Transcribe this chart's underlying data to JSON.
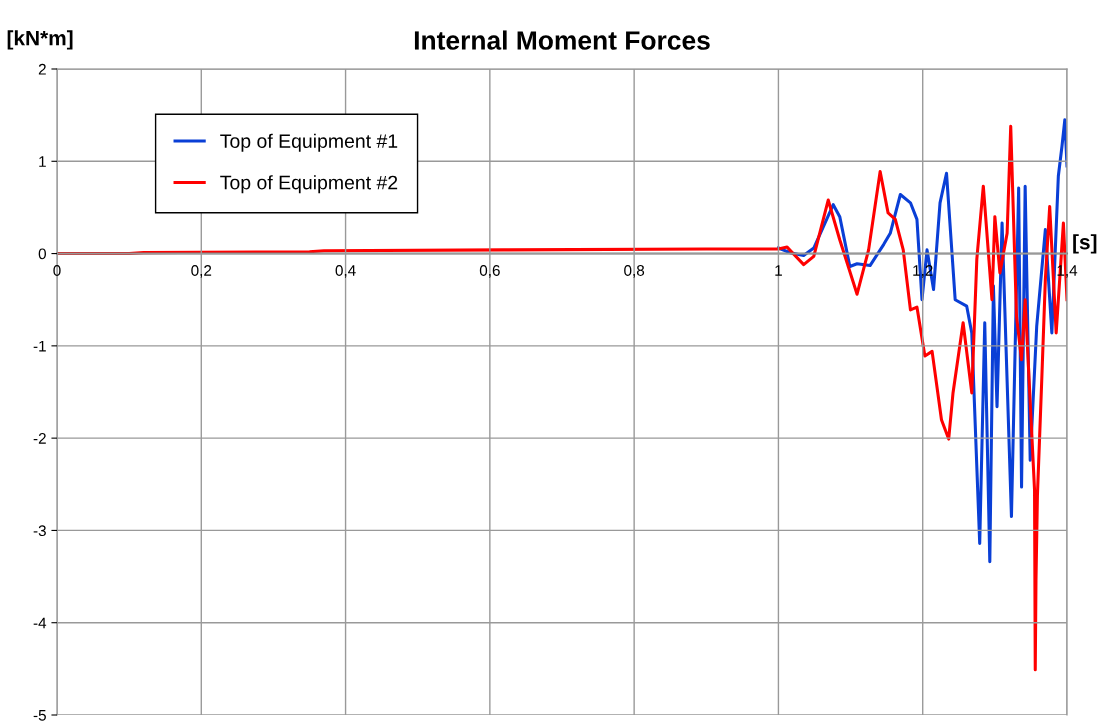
{
  "chart_data": {
    "type": "line",
    "title": "Internal Moment Forces",
    "xlabel": "[s]",
    "ylabel": "[kN*m]",
    "xlim": [
      0,
      1.4
    ],
    "ylim": [
      -5,
      2
    ],
    "xticks": [
      0,
      {
        "value": 0.2,
        "label": "0,2"
      },
      {
        "value": 0.4,
        "label": "0,4"
      },
      {
        "value": 0.6,
        "label": "0,6"
      },
      {
        "value": 0.8,
        "label": "0,8"
      },
      1,
      {
        "value": 1.2,
        "label": "1,2"
      },
      {
        "value": 1.4,
        "label": "1,4"
      }
    ],
    "yticks": [
      -5,
      -4,
      -3,
      -2,
      -1,
      0,
      1,
      2
    ],
    "grid": true,
    "legend": "top left",
    "marker": "none",
    "line_style": "solid",
    "series": [
      {
        "name": "Top of Equipment #1",
        "color": "#0a3fd6",
        "x": [
          1.0,
          1.016,
          1.035,
          1.049,
          1.076,
          1.085,
          1.099,
          1.109,
          1.127,
          1.146,
          1.155,
          1.169,
          1.183,
          1.192,
          1.199,
          1.206,
          1.215,
          1.224,
          1.233,
          1.245,
          1.261,
          1.268,
          1.279,
          1.286,
          1.293,
          1.298,
          1.303,
          1.31,
          1.323,
          1.333,
          1.337,
          1.342,
          1.349,
          1.358,
          1.37,
          1.379,
          1.388,
          1.393,
          1.397,
          1.4
        ],
        "values": [
          0.06,
          0.01,
          -0.02,
          0.06,
          0.53,
          0.4,
          -0.14,
          -0.11,
          -0.13,
          0.1,
          0.22,
          0.64,
          0.55,
          0.37,
          -0.5,
          0.04,
          -0.39,
          0.55,
          0.87,
          -0.5,
          -0.57,
          -0.86,
          -3.14,
          -0.75,
          -3.34,
          -0.35,
          -1.66,
          0.33,
          -2.85,
          0.71,
          -2.53,
          0.73,
          -2.24,
          -0.79,
          0.26,
          -0.86,
          0.84,
          1.16,
          1.45,
          0.95
        ]
      },
      {
        "name": "Top of Equipment #2",
        "color": "#ff0000",
        "x": [
          0,
          0.1,
          0.12,
          0.35,
          0.37,
          0.62,
          0.9,
          1.0,
          1.012,
          1.035,
          1.049,
          1.069,
          1.085,
          1.109,
          1.125,
          1.141,
          1.152,
          1.162,
          1.173,
          1.183,
          1.192,
          1.203,
          1.213,
          1.226,
          1.236,
          1.242,
          1.256,
          1.268,
          1.275,
          1.284,
          1.296,
          1.3,
          1.307,
          1.317,
          1.322,
          1.33,
          1.337,
          1.342,
          1.355,
          1.356,
          1.357,
          1.359,
          1.365,
          1.37,
          1.376,
          1.385,
          1.395,
          1.4
        ],
        "values": [
          0,
          0,
          0.01,
          0.02,
          0.03,
          0.04,
          0.05,
          0.05,
          0.07,
          -0.12,
          -0.03,
          0.58,
          0.15,
          -0.44,
          0.04,
          0.89,
          0.44,
          0.37,
          0.04,
          -0.61,
          -0.58,
          -1.11,
          -1.06,
          -1.8,
          -2.01,
          -1.51,
          -0.75,
          -1.51,
          -0.06,
          0.73,
          -0.5,
          0.4,
          -0.21,
          0.22,
          1.38,
          -0.68,
          -1.15,
          -0.5,
          -2.56,
          -4.51,
          -3.54,
          -2.62,
          -1.37,
          -0.28,
          0.51,
          -0.86,
          0.33,
          -0.5
        ]
      }
    ]
  }
}
